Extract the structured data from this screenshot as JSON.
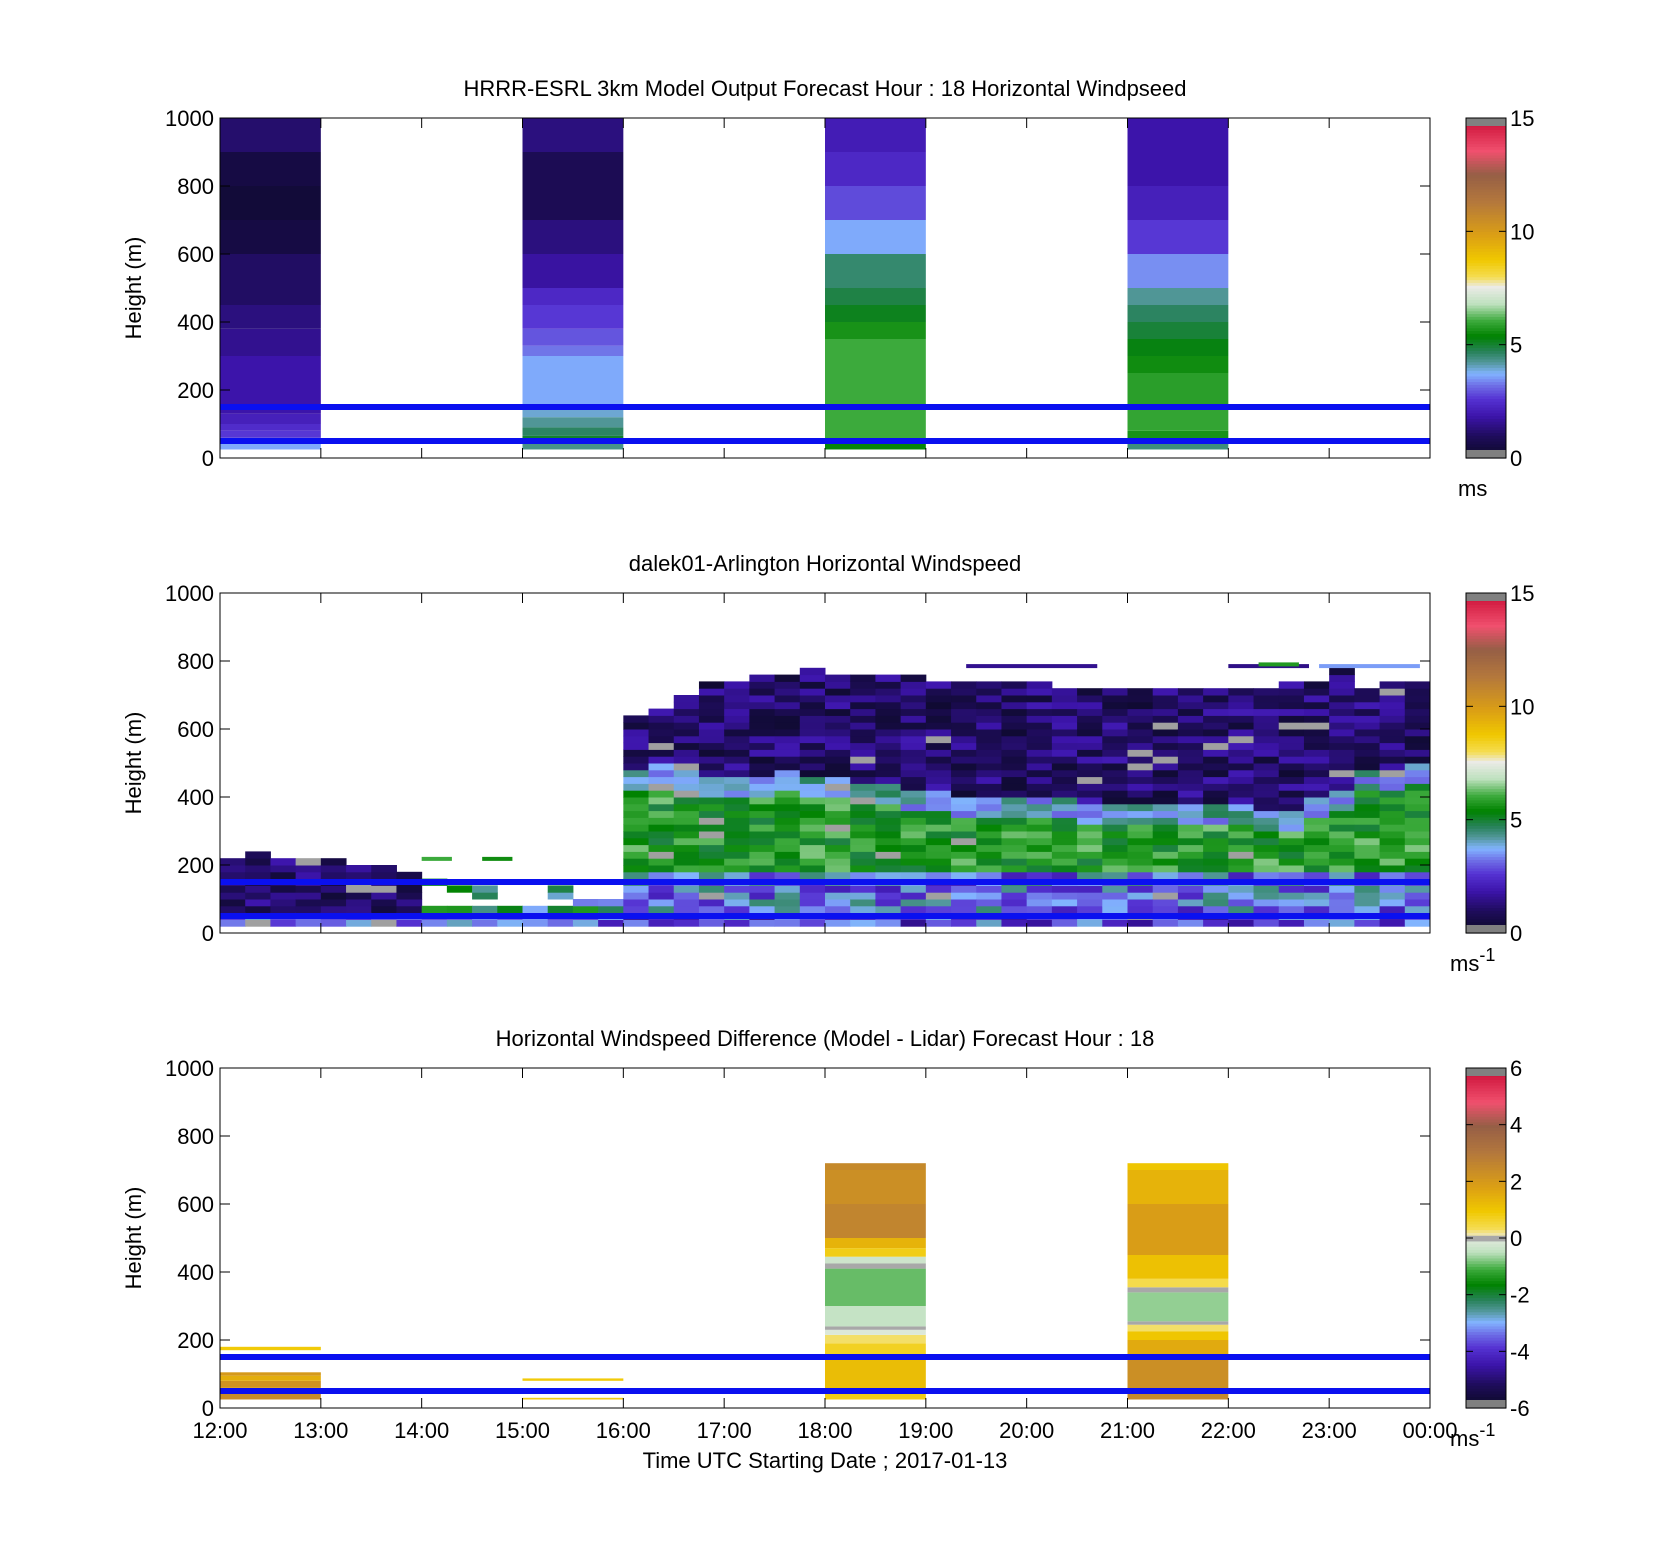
{
  "chart_data": [
    {
      "type": "heatmap",
      "title": "HRRR-ESRL 3km Model Output   Forecast Hour : 18 Horizontal Windpseed",
      "xlabel": "",
      "ylabel": "Height (m)",
      "xlim": [
        0,
        12
      ],
      "ylim": [
        0,
        1000
      ],
      "yticks": [
        0,
        200,
        400,
        600,
        800,
        1000
      ],
      "xticks": [
        0,
        1,
        2,
        3,
        4,
        5,
        6,
        7,
        8,
        9,
        10,
        11,
        12
      ],
      "xtick_labels": [],
      "colorbar": {
        "ticks": [
          0,
          5,
          10,
          15
        ],
        "lim": [
          0,
          15
        ],
        "unit_label": "ms",
        "unit_sup": "",
        "scale": "speed"
      },
      "reference_lines_m": [
        50,
        150
      ],
      "grid": false,
      "columns": [
        {
          "x": [
            0,
            1
          ],
          "bands": [
            {
              "y": [
                25,
                45
              ],
              "v": 3.6
            },
            {
              "y": [
                45,
                60
              ],
              "v": 3.0
            },
            {
              "y": [
                60,
                80
              ],
              "v": 2.6
            },
            {
              "y": [
                80,
                100
              ],
              "v": 2.4
            },
            {
              "y": [
                100,
                130
              ],
              "v": 2.1
            },
            {
              "y": [
                130,
                300
              ],
              "v": 1.8
            },
            {
              "y": [
                300,
                380
              ],
              "v": 1.5
            },
            {
              "y": [
                380,
                450
              ],
              "v": 1.3
            },
            {
              "y": [
                450,
                600
              ],
              "v": 1.0
            },
            {
              "y": [
                600,
                700
              ],
              "v": 0.5
            },
            {
              "y": [
                700,
                800
              ],
              "v": 0.3
            },
            {
              "y": [
                800,
                900
              ],
              "v": 0.5
            },
            {
              "y": [
                900,
                1000
              ],
              "v": 1.1
            }
          ]
        },
        {
          "x": [
            3,
            4
          ],
          "bands": [
            {
              "y": [
                25,
                45
              ],
              "v": 4.3
            },
            {
              "y": [
                45,
                65
              ],
              "v": 5.0
            },
            {
              "y": [
                65,
                90
              ],
              "v": 4.6
            },
            {
              "y": [
                90,
                120
              ],
              "v": 4.2
            },
            {
              "y": [
                120,
                150
              ],
              "v": 3.9
            },
            {
              "y": [
                150,
                300
              ],
              "v": 3.6
            },
            {
              "y": [
                300,
                330
              ],
              "v": 3.2
            },
            {
              "y": [
                330,
                380
              ],
              "v": 2.9
            },
            {
              "y": [
                380,
                450
              ],
              "v": 2.6
            },
            {
              "y": [
                450,
                500
              ],
              "v": 2.3
            },
            {
              "y": [
                500,
                600
              ],
              "v": 1.7
            },
            {
              "y": [
                600,
                700
              ],
              "v": 1.3
            },
            {
              "y": [
                700,
                900
              ],
              "v": 0.8
            },
            {
              "y": [
                900,
                1000
              ],
              "v": 1.3
            }
          ]
        },
        {
          "x": [
            6,
            7
          ],
          "bands": [
            {
              "y": [
                25,
                45
              ],
              "v": 5.4
            },
            {
              "y": [
                45,
                150
              ],
              "v": 6.0
            },
            {
              "y": [
                150,
                350
              ],
              "v": 6.0
            },
            {
              "y": [
                350,
                400
              ],
              "v": 5.6
            },
            {
              "y": [
                400,
                450
              ],
              "v": 5.1
            },
            {
              "y": [
                450,
                500
              ],
              "v": 4.8
            },
            {
              "y": [
                500,
                600
              ],
              "v": 4.5
            },
            {
              "y": [
                600,
                700
              ],
              "v": 3.6
            },
            {
              "y": [
                700,
                800
              ],
              "v": 2.8
            },
            {
              "y": [
                800,
                900
              ],
              "v": 2.3
            },
            {
              "y": [
                900,
                1000
              ],
              "v": 2.0
            }
          ]
        },
        {
          "x": [
            9,
            10
          ],
          "bands": [
            {
              "y": [
                25,
                45
              ],
              "v": 4.4
            },
            {
              "y": [
                45,
                80
              ],
              "v": 5.6
            },
            {
              "y": [
                80,
                150
              ],
              "v": 5.9
            },
            {
              "y": [
                150,
                250
              ],
              "v": 5.8
            },
            {
              "y": [
                250,
                300
              ],
              "v": 5.5
            },
            {
              "y": [
                300,
                350
              ],
              "v": 5.2
            },
            {
              "y": [
                350,
                400
              ],
              "v": 4.9
            },
            {
              "y": [
                400,
                450
              ],
              "v": 4.6
            },
            {
              "y": [
                450,
                500
              ],
              "v": 4.2
            },
            {
              "y": [
                500,
                600
              ],
              "v": 3.4
            },
            {
              "y": [
                600,
                700
              ],
              "v": 2.6
            },
            {
              "y": [
                700,
                800
              ],
              "v": 2.1
            },
            {
              "y": [
                800,
                1000
              ],
              "v": 1.8
            }
          ]
        }
      ]
    },
    {
      "type": "heatmap",
      "title": "dalek01-Arlington  Horizontal Windspeed",
      "xlabel": "",
      "ylabel": "Height (m)",
      "xlim": [
        0,
        12
      ],
      "ylim": [
        0,
        1000
      ],
      "yticks": [
        0,
        200,
        400,
        600,
        800,
        1000
      ],
      "xticks": [
        0,
        1,
        2,
        3,
        4,
        5,
        6,
        7,
        8,
        9,
        10,
        11,
        12
      ],
      "xtick_labels": [],
      "colorbar": {
        "ticks": [
          0,
          5,
          10,
          15
        ],
        "lim": [
          0,
          15
        ],
        "unit_label": "ms",
        "unit_sup": "-1",
        "scale": "speed"
      },
      "reference_lines_m": [
        50,
        150
      ],
      "grid": false,
      "profiles": {
        "time_step_hours": 0.25,
        "x_start": 0,
        "segments": [
          {
            "from": 0,
            "to": 8,
            "top": [
              220,
              230,
              220,
              210,
              205,
              200,
              190,
              180
            ],
            "regime": "low_dark"
          },
          {
            "from": 8,
            "to": 16,
            "top": [
              160,
              140,
              140,
              130,
              130,
              140,
              190,
              200
            ],
            "regime": "low_sparse"
          },
          {
            "from": 16,
            "to": 48,
            "top": [
              640,
              660,
              700,
              740,
              740,
              760,
              760,
              770,
              760,
              760,
              760,
              750,
              740,
              740,
              730,
              740,
              730,
              720,
              720,
              720,
              720,
              720,
              710,
              720,
              720,
              710,
              730,
              740,
              770,
              720,
              740,
              740
            ],
            "regime": "deep"
          }
        ],
        "green_layer_top_m": [
          480,
          500,
          470,
          450,
          450,
          460,
          470,
          460,
          450,
          440,
          430,
          420,
          410,
          400,
          395,
          390,
          390,
          385,
          380,
          380,
          375,
          375,
          370,
          370,
          365,
          360,
          360,
          390,
          420,
          470,
          480,
          500
        ]
      },
      "isolated_traces": [
        {
          "x": [
            7.4,
            8.7
          ],
          "y": 785,
          "v": 1.5
        },
        {
          "x": [
            10,
            10.8
          ],
          "y": 785,
          "v": 1.4
        },
        {
          "x": [
            10.9,
            11.9
          ],
          "y": 785,
          "v": 3.5
        },
        {
          "x": [
            10.3,
            10.7
          ],
          "y": 790,
          "v": 5.7
        },
        {
          "x": [
            2.0,
            2.3
          ],
          "y": 218,
          "v": 6.0
        },
        {
          "x": [
            2.6,
            2.9
          ],
          "y": 218,
          "v": 5.5
        }
      ]
    },
    {
      "type": "heatmap",
      "title": "Horizontal Windspeed Difference (Model - Lidar) Forecast Hour : 18",
      "xlabel": "Time UTC  Starting Date ; 2017-01-13",
      "ylabel": "Height (m)",
      "xlim": [
        0,
        12
      ],
      "ylim": [
        0,
        1000
      ],
      "yticks": [
        0,
        200,
        400,
        600,
        800,
        1000
      ],
      "xticks": [
        0,
        1,
        2,
        3,
        4,
        5,
        6,
        7,
        8,
        9,
        10,
        11,
        12
      ],
      "xtick_labels": [
        "12:00",
        "13:00",
        "14:00",
        "15:00",
        "16:00",
        "17:00",
        "18:00",
        "19:00",
        "20:00",
        "21:00",
        "22:00",
        "23:00",
        "00:00"
      ],
      "colorbar": {
        "ticks": [
          -6,
          -4,
          -2,
          0,
          2,
          4,
          6
        ],
        "lim": [
          -6,
          6
        ],
        "unit_label": "ms",
        "unit_sup": "-1",
        "scale": "diff"
      },
      "reference_lines_m": [
        50,
        150
      ],
      "grid": false,
      "columns": [
        {
          "x": [
            0,
            1
          ],
          "bands": [
            {
              "y": [
                25,
                45
              ],
              "v": 2.4
            },
            {
              "y": [
                45,
                60
              ],
              "v": 1.6
            },
            {
              "y": [
                60,
                80
              ],
              "v": 2.2
            },
            {
              "y": [
                80,
                95
              ],
              "v": 1.5
            },
            {
              "y": [
                95,
                105
              ],
              "v": 2.0
            },
            {
              "y": [
                170,
                180
              ],
              "v": 0.9
            }
          ]
        },
        {
          "x": [
            3,
            4
          ],
          "bands": [
            {
              "y": [
                25,
                30
              ],
              "v": 0.8
            },
            {
              "y": [
                80,
                87
              ],
              "v": 0.9
            }
          ]
        },
        {
          "x": [
            6,
            7
          ],
          "bands": [
            {
              "y": [
                25,
                45
              ],
              "v": 0.8
            },
            {
              "y": [
                45,
                150
              ],
              "v": 1.2
            },
            {
              "y": [
                150,
                190
              ],
              "v": 0.7
            },
            {
              "y": [
                190,
                215
              ],
              "v": 0.3
            },
            {
              "y": [
                215,
                230
              ],
              "v": -0.2
            },
            {
              "y": [
                230,
                240
              ],
              "v": 0.05
            },
            {
              "y": [
                240,
                300
              ],
              "v": -0.5
            },
            {
              "y": [
                300,
                410
              ],
              "v": -1.0
            },
            {
              "y": [
                410,
                425
              ],
              "v": 0.05
            },
            {
              "y": [
                425,
                445
              ],
              "v": -0.4
            },
            {
              "y": [
                445,
                470
              ],
              "v": 0.8
            },
            {
              "y": [
                470,
                500
              ],
              "v": 1.4
            },
            {
              "y": [
                500,
                600
              ],
              "v": 2.6
            },
            {
              "y": [
                600,
                700
              ],
              "v": 2.3
            },
            {
              "y": [
                700,
                720
              ],
              "v": 2.5
            }
          ]
        },
        {
          "x": [
            9,
            10
          ],
          "bands": [
            {
              "y": [
                25,
                45
              ],
              "v": 2.5
            },
            {
              "y": [
                45,
                150
              ],
              "v": 2.3
            },
            {
              "y": [
                150,
                200
              ],
              "v": 1.6
            },
            {
              "y": [
                200,
                225
              ],
              "v": 1.0
            },
            {
              "y": [
                225,
                245
              ],
              "v": 0.3
            },
            {
              "y": [
                245,
                255
              ],
              "v": 0.05
            },
            {
              "y": [
                255,
                340
              ],
              "v": -0.8
            },
            {
              "y": [
                340,
                355
              ],
              "v": 0.05
            },
            {
              "y": [
                355,
                380
              ],
              "v": 0.4
            },
            {
              "y": [
                380,
                450
              ],
              "v": 1.1
            },
            {
              "y": [
                450,
                600
              ],
              "v": 1.9
            },
            {
              "y": [
                600,
                700
              ],
              "v": 1.4
            },
            {
              "y": [
                700,
                720
              ],
              "v": 1.0
            }
          ]
        }
      ]
    }
  ]
}
